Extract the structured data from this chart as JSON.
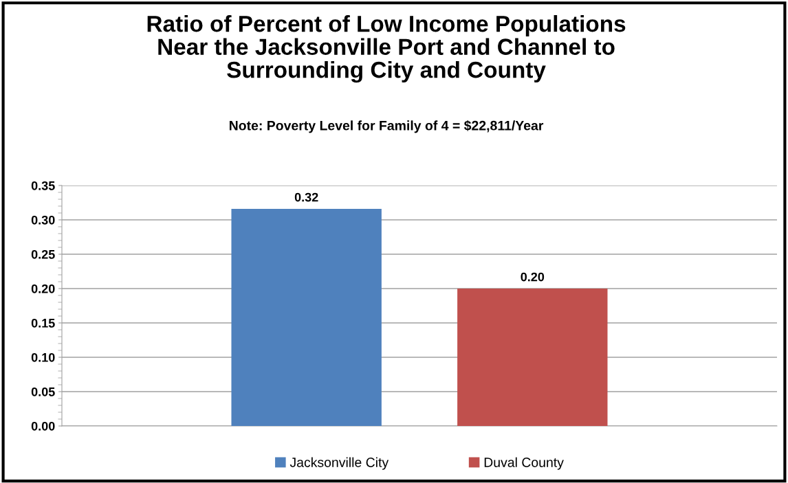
{
  "chart_data": {
    "type": "bar",
    "title": "Ratio of Percent of Low Income Populations\nNear the Jacksonville Port and Channel to\nSurrounding City and County",
    "subtitle": "Note: Poverty Level for Family of 4 = $22,811/Year",
    "categories": [
      null
    ],
    "series": [
      {
        "name": "Jacksonville City",
        "color": "#4f81bd",
        "values": [
          0.316
        ],
        "value_labels": [
          "0.32"
        ]
      },
      {
        "name": "Duval County",
        "color": "#c0504d",
        "values": [
          0.2
        ],
        "value_labels": [
          "0.20"
        ]
      }
    ],
    "ylim": [
      0,
      0.35
    ],
    "yticks": [
      {
        "value": 0,
        "label": "0.00"
      },
      {
        "value": 0.05,
        "label": "0.05"
      },
      {
        "value": 0.1,
        "label": "0.10"
      },
      {
        "value": 0.15,
        "label": "0.15"
      },
      {
        "value": 0.2,
        "label": "0.20"
      },
      {
        "value": 0.25,
        "label": "0.25"
      },
      {
        "value": 0.3,
        "label": "0.30"
      },
      {
        "value": 0.35,
        "label": "0.35"
      }
    ],
    "grid": "y",
    "legend": "bottom"
  }
}
